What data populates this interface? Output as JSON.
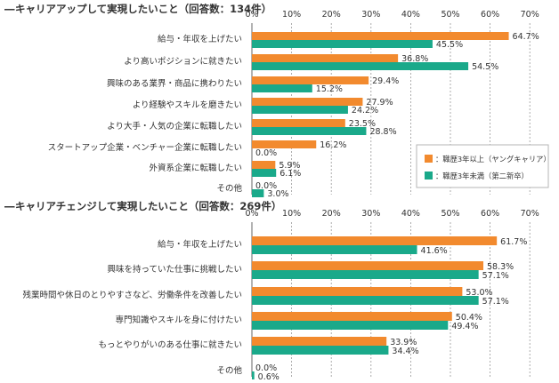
{
  "colors": {
    "senior": "#F28A2E",
    "junior": "#1AA98A",
    "text": "#333333",
    "grid": "#9a9a9a"
  },
  "legend": {
    "senior_label": "：職歴3年以上（ヤングキャリア）",
    "junior_label": "：職歴3年未満（第二新卒）"
  },
  "chart_data": [
    {
      "type": "bar",
      "orientation": "horizontal",
      "title": "キャリアアップして実現したいこと（回答数：134件）",
      "title_dash": "―",
      "xlim": [
        0,
        70
      ],
      "x_ticks": [
        "0%",
        "10%",
        "20%",
        "30%",
        "40%",
        "50%",
        "60%",
        "70%"
      ],
      "categories": [
        "給与・年収を上げたい",
        "より高いポジションに就きたい",
        "興味のある業界・商品に携わりたい",
        "より経験やスキルを磨きたい",
        "より大手・人気の企業に転職したい",
        "スタートアップ企業・ベンチャー企業に転職したい",
        "外資系企業に転職したい",
        "その他"
      ],
      "series": [
        {
          "name": "職歴3年以上（ヤングキャリア）",
          "values": [
            64.7,
            36.8,
            29.4,
            27.9,
            23.5,
            16.2,
            5.9,
            0.0
          ],
          "labels": [
            "64.7%",
            "36.8%",
            "29.4%",
            "27.9%",
            "23.5%",
            "16.2%",
            "5.9%",
            "0.0%"
          ]
        },
        {
          "name": "職歴3年未満（第二新卒）",
          "values": [
            45.5,
            54.5,
            15.2,
            24.2,
            28.8,
            0.0,
            6.1,
            3.0
          ],
          "labels": [
            "45.5%",
            "54.5%",
            "15.2%",
            "24.2%",
            "28.8%",
            "0.0%",
            "6.1%",
            "3.0%"
          ]
        }
      ]
    },
    {
      "type": "bar",
      "orientation": "horizontal",
      "title": "キャリアチェンジして実現したいこと（回答数：269件）",
      "title_dash": "―",
      "xlim": [
        0,
        70
      ],
      "x_ticks": [
        "0%",
        "10%",
        "20%",
        "30%",
        "40%",
        "50%",
        "60%",
        "70%"
      ],
      "categories": [
        "給与・年収を上げたい",
        "興味を持っていた仕事に挑戦したい",
        "残業時間や休日のとりやすさなど、労働条件を改善したい",
        "専門知識やスキルを身に付けたい",
        "もっとやりがいのある仕事に就きたい",
        "その他"
      ],
      "series": [
        {
          "name": "職歴3年以上（ヤングキャリア）",
          "values": [
            61.7,
            58.3,
            53.0,
            50.4,
            33.9,
            0.0
          ],
          "labels": [
            "61.7%",
            "58.3%",
            "53.0%",
            "50.4%",
            "33.9%",
            "0.0%"
          ]
        },
        {
          "name": "職歴3年未満（第二新卒）",
          "values": [
            41.6,
            57.1,
            57.1,
            49.4,
            34.4,
            0.6
          ],
          "labels": [
            "41.6%",
            "57.1%",
            "57.1%",
            "49.4%",
            "34.4%",
            "0.6%"
          ]
        }
      ]
    }
  ]
}
